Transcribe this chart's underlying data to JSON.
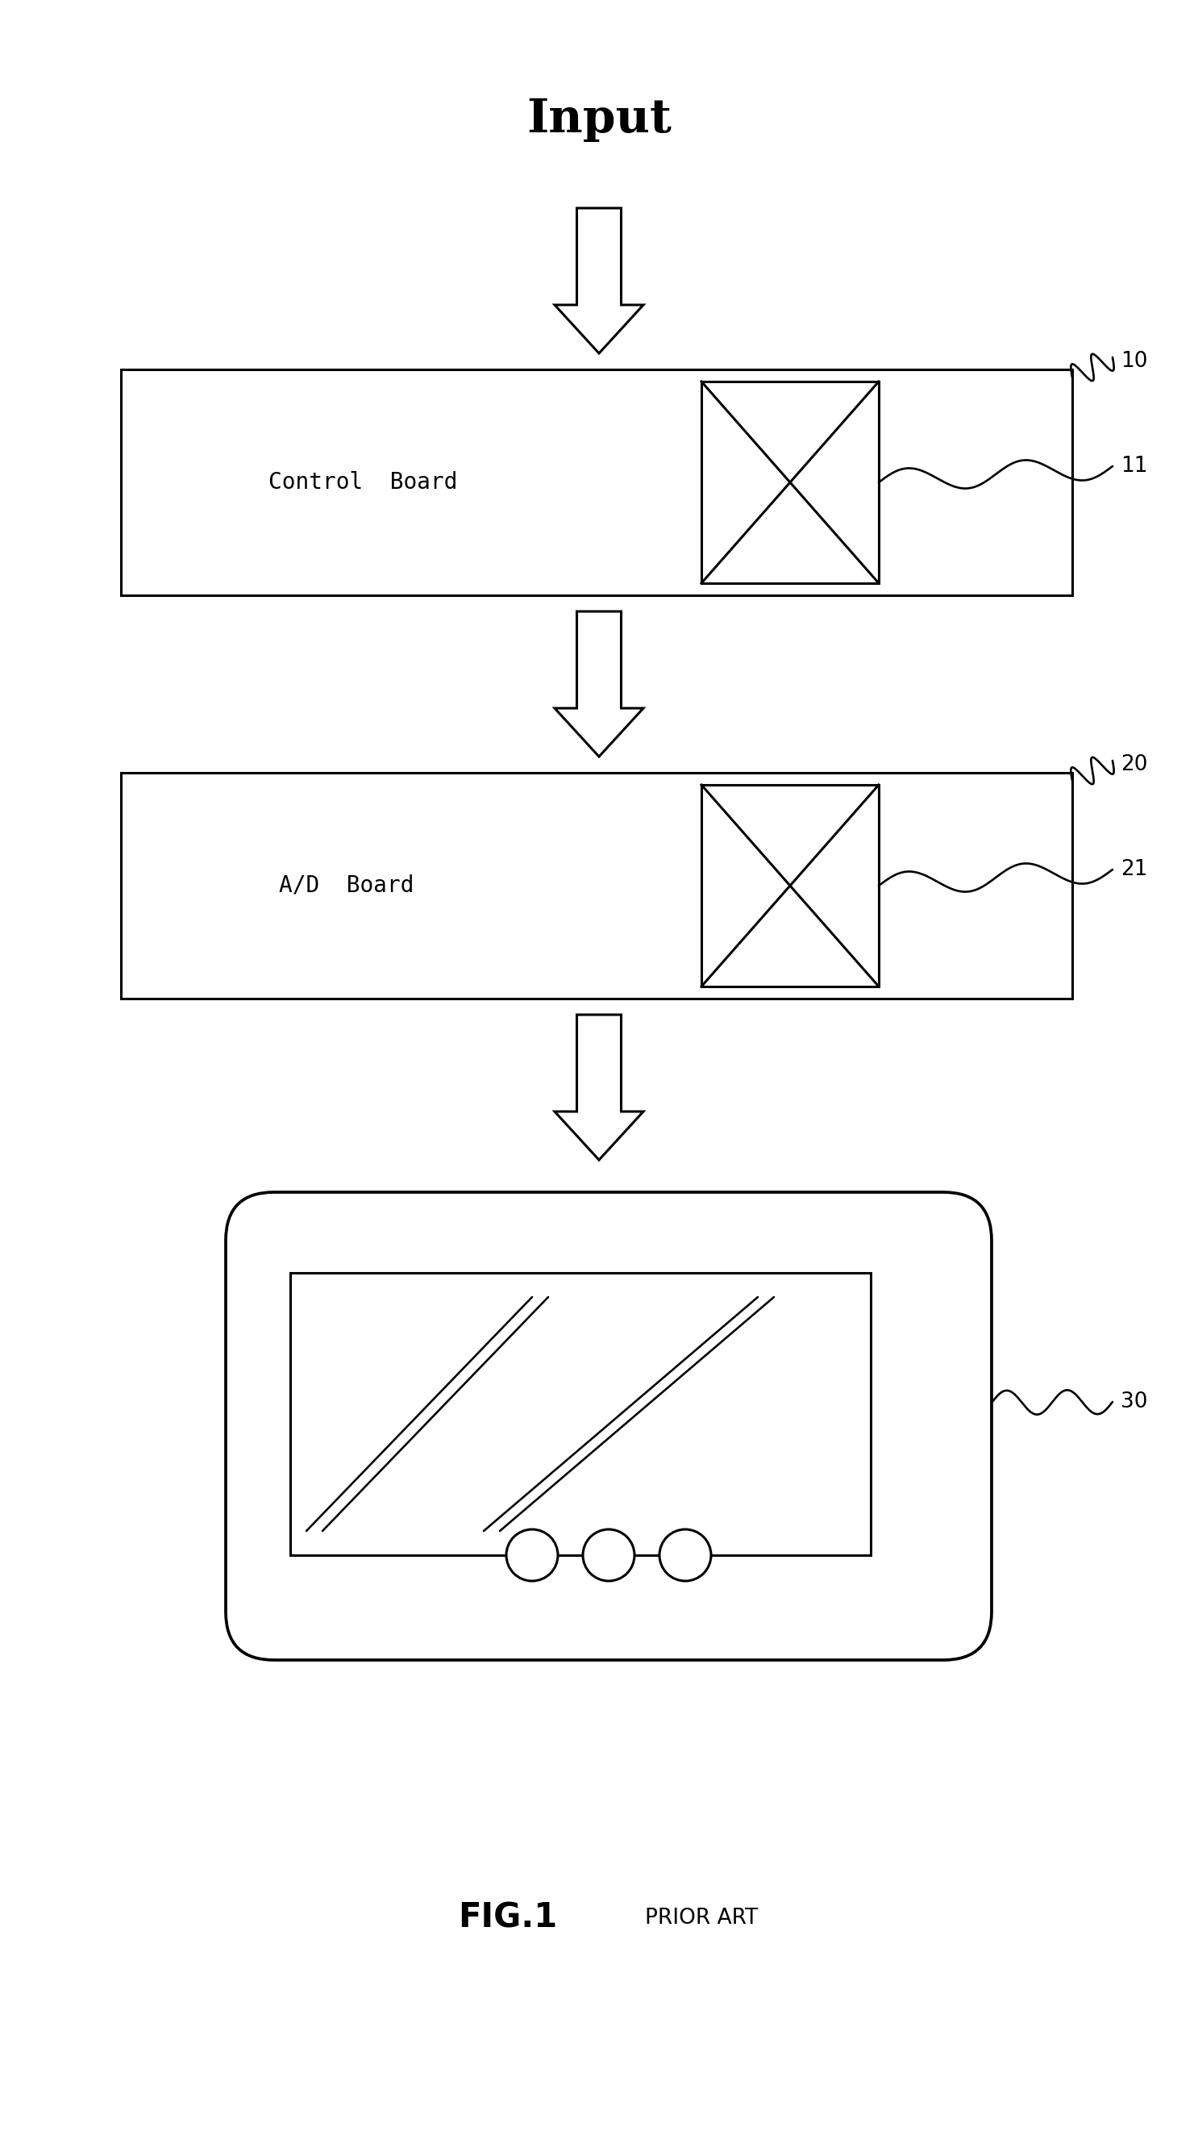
{
  "background_color": "#ffffff",
  "title_text": "FIG.1",
  "subtitle_text": "PRIOR ART",
  "input_label": "Input",
  "control_board_label": "Control  Board",
  "ad_board_label": "A/D  Board",
  "label_10": "10",
  "label_11": "11",
  "label_20": "20",
  "label_21": "21",
  "label_30": "30",
  "line_color": "#000000",
  "line_width": 2.2
}
